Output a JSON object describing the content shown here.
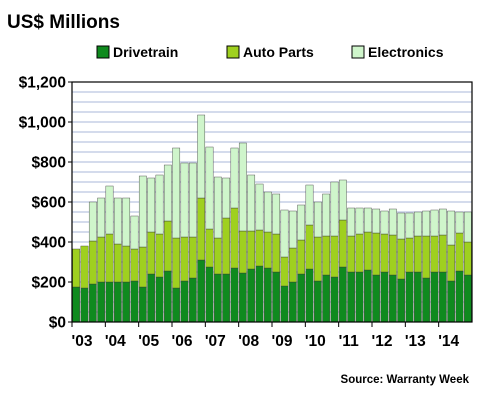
{
  "chart_data": {
    "type": "bar",
    "stacked": true,
    "title": "US$ Millions",
    "source": "Source: Warranty Week",
    "ylim": [
      0,
      1200
    ],
    "y_ticks": [
      "$0",
      "$200",
      "$400",
      "$600",
      "$800",
      "$1,000",
      "$1,200"
    ],
    "y_tick_values": [
      0,
      200,
      400,
      600,
      800,
      1000,
      1200
    ],
    "grid": true,
    "legend_position": "top",
    "x_tick_labels": [
      "'03",
      "'04",
      "'05",
      "'06",
      "'07",
      "'08",
      "'09",
      "'10",
      "'11",
      "'12",
      "'13",
      "'14"
    ],
    "colors": {
      "Drivetrain": "#0f8a1e",
      "Auto Parts": "#9fd01f",
      "Electronics": "#cff5cb",
      "grid": "#aab7d8",
      "border": "#000000"
    },
    "categories": [
      "2003Q1",
      "2003Q2",
      "2003Q3",
      "2003Q4",
      "2004Q1",
      "2004Q2",
      "2004Q3",
      "2004Q4",
      "2005Q1",
      "2005Q2",
      "2005Q3",
      "2005Q4",
      "2006Q1",
      "2006Q2",
      "2006Q3",
      "2006Q4",
      "2007Q1",
      "2007Q2",
      "2007Q3",
      "2007Q4",
      "2008Q1",
      "2008Q2",
      "2008Q3",
      "2008Q4",
      "2009Q1",
      "2009Q2",
      "2009Q3",
      "2009Q4",
      "2010Q1",
      "2010Q2",
      "2010Q3",
      "2010Q4",
      "2011Q1",
      "2011Q2",
      "2011Q3",
      "2011Q4",
      "2012Q1",
      "2012Q2",
      "2012Q3",
      "2012Q4",
      "2013Q1",
      "2013Q2",
      "2013Q3",
      "2013Q4",
      "2014Q1",
      "2014Q2",
      "2014Q3",
      "2014Q4"
    ],
    "series": [
      {
        "name": "Drivetrain",
        "values": [
          175,
          170,
          190,
          200,
          200,
          200,
          200,
          205,
          175,
          240,
          225,
          255,
          170,
          205,
          220,
          310,
          275,
          240,
          240,
          270,
          245,
          265,
          280,
          270,
          250,
          180,
          200,
          240,
          265,
          205,
          235,
          225,
          275,
          250,
          250,
          260,
          235,
          250,
          235,
          215,
          250,
          250,
          220,
          250,
          250,
          205,
          255,
          235
        ]
      },
      {
        "name": "Auto Parts",
        "values": [
          190,
          210,
          215,
          225,
          240,
          190,
          180,
          160,
          200,
          210,
          215,
          250,
          250,
          220,
          205,
          310,
          190,
          180,
          280,
          300,
          210,
          190,
          180,
          180,
          190,
          145,
          170,
          170,
          220,
          220,
          195,
          205,
          235,
          180,
          190,
          190,
          210,
          190,
          200,
          200,
          170,
          180,
          210,
          180,
          185,
          180,
          190,
          165
        ]
      },
      {
        "name": "Electronics",
        "values": [
          0,
          0,
          195,
          195,
          240,
          230,
          240,
          165,
          355,
          270,
          295,
          280,
          450,
          370,
          370,
          415,
          410,
          305,
          200,
          300,
          440,
          280,
          230,
          200,
          200,
          235,
          185,
          175,
          200,
          175,
          210,
          270,
          200,
          140,
          130,
          120,
          120,
          115,
          130,
          130,
          125,
          120,
          125,
          130,
          130,
          170,
          105,
          150
        ]
      }
    ]
  }
}
